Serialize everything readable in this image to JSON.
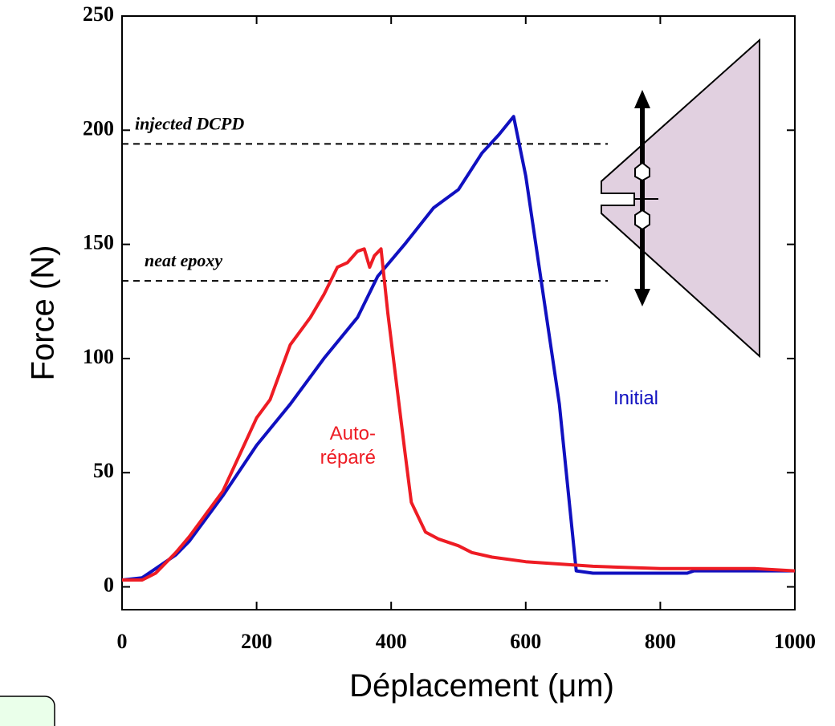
{
  "chart_data": {
    "type": "line",
    "xlabel": "Déplacement (μm)",
    "ylabel": "Force (N)",
    "xlim": [
      0,
      1000
    ],
    "ylim": [
      -10,
      250
    ],
    "xticks": [
      0,
      200,
      400,
      600,
      800,
      1000
    ],
    "yticks": [
      0,
      50,
      100,
      150,
      200,
      250
    ],
    "series": [
      {
        "name": "Initial",
        "color": "#1010c0",
        "x": [
          0,
          30,
          50,
          80,
          100,
          150,
          200,
          250,
          300,
          350,
          380,
          420,
          463,
          500,
          535,
          560,
          582,
          600,
          650,
          675,
          700,
          840,
          850,
          940,
          1000
        ],
        "values": [
          3,
          4,
          8,
          14,
          20,
          40,
          62,
          80,
          100,
          118,
          136,
          150,
          166,
          174,
          190,
          198,
          206,
          180,
          80,
          7,
          6,
          6,
          7,
          7,
          7
        ]
      },
      {
        "name": "Auto-réparé",
        "color": "#ee1c24",
        "x": [
          0,
          30,
          50,
          80,
          100,
          150,
          200,
          220,
          250,
          280,
          300,
          320,
          335,
          350,
          360,
          368,
          375,
          385,
          395,
          420,
          430,
          451,
          470,
          500,
          520,
          550,
          600,
          700,
          800,
          940,
          1000
        ],
        "values": [
          3,
          3,
          6,
          15,
          22,
          42,
          74,
          82,
          106,
          118,
          128,
          140,
          142,
          147,
          148,
          140,
          145,
          148,
          120,
          60,
          37,
          24,
          21,
          18,
          15,
          13,
          11,
          9,
          8,
          8,
          7
        ]
      }
    ],
    "reference_lines": [
      {
        "label": "injected DCPD",
        "value": 194
      },
      {
        "label": "neat epoxy",
        "value": 134
      }
    ]
  }
}
